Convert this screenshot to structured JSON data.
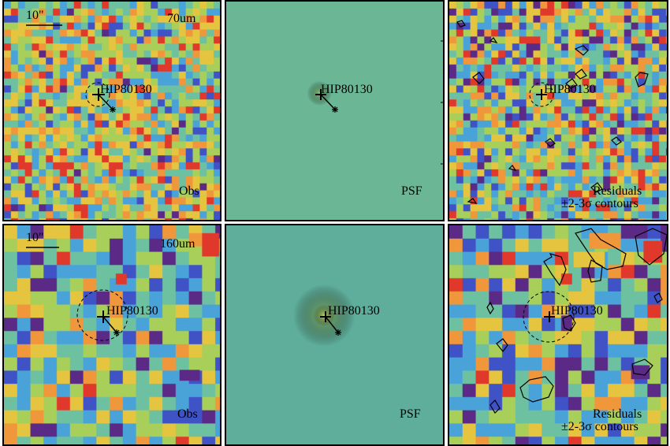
{
  "figure": {
    "target_name": "HIP80130",
    "scale_bar_label": "10\"",
    "rows": [
      {
        "band": "70um",
        "obs_label": "Obs",
        "psf_label": "PSF",
        "residual_label": "Residuals",
        "contour_label": "±2-3σ contours"
      },
      {
        "band": "160um",
        "obs_label": "Obs",
        "psf_label": "PSF",
        "residual_label": "Residuals",
        "contour_label": "±2-3σ contours"
      }
    ]
  },
  "colors": {
    "colormap": [
      "#5b2a86",
      "#3f53c6",
      "#4aa3d8",
      "#6ec1a0",
      "#a8cf5a",
      "#e5c53f",
      "#f0973b",
      "#e0392b"
    ],
    "psf_background_70": "#6bb795",
    "psf_background_160": "#5fae9c",
    "border": "#000000"
  }
}
